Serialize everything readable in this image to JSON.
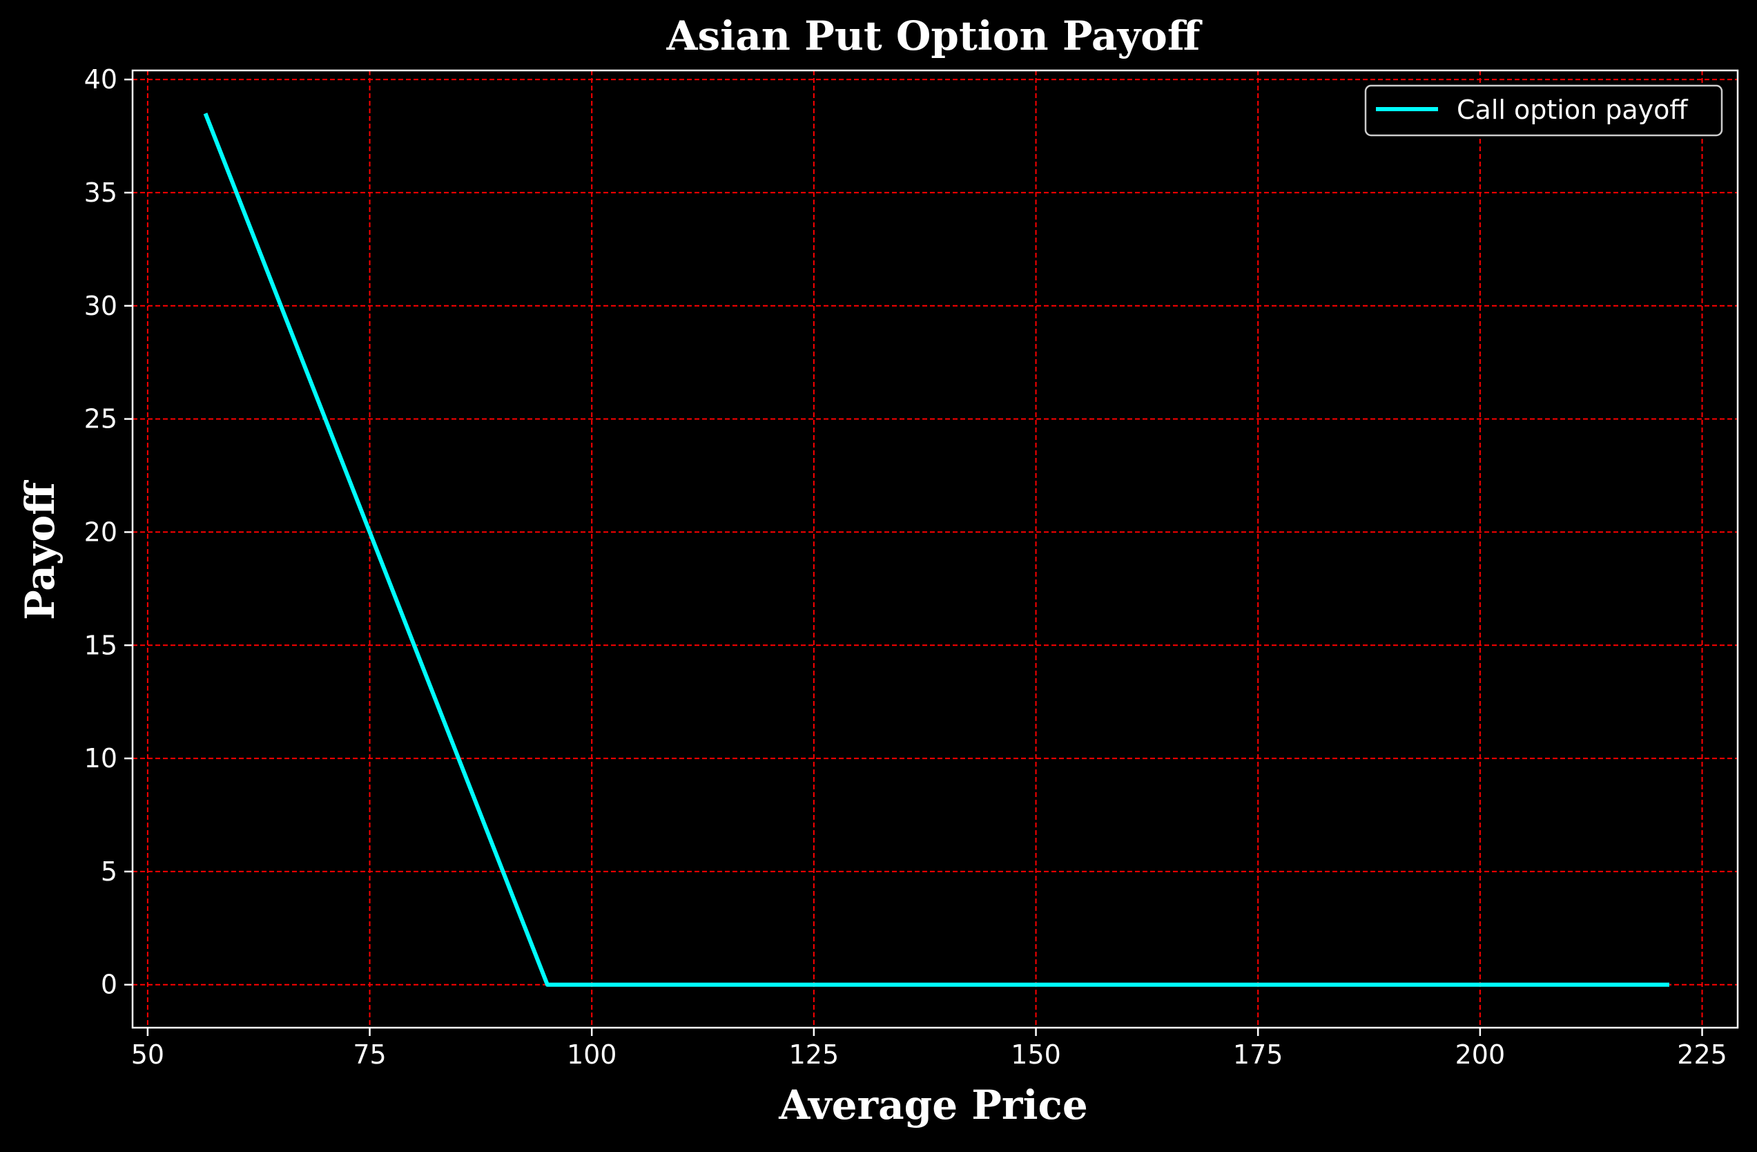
{
  "chart_data": {
    "type": "line",
    "title": "Asian Put Option Payoff",
    "xlabel": "Average Price",
    "ylabel": "Payoff",
    "xlim": [
      48.3,
      229.0
    ],
    "ylim": [
      -1.9,
      40.4
    ],
    "xticks": [
      50,
      75,
      100,
      125,
      150,
      175,
      200,
      225
    ],
    "yticks": [
      0,
      5,
      10,
      15,
      20,
      25,
      30,
      35,
      40
    ],
    "grid": true,
    "grid_color": "#ff0000",
    "background": "#000000",
    "legend_position": "top-right",
    "series": [
      {
        "name": "Call option payoff",
        "color": "#00ffff",
        "x": [
          56.5,
          95.0,
          221.3
        ],
        "y": [
          38.5,
          0,
          0
        ]
      }
    ]
  }
}
